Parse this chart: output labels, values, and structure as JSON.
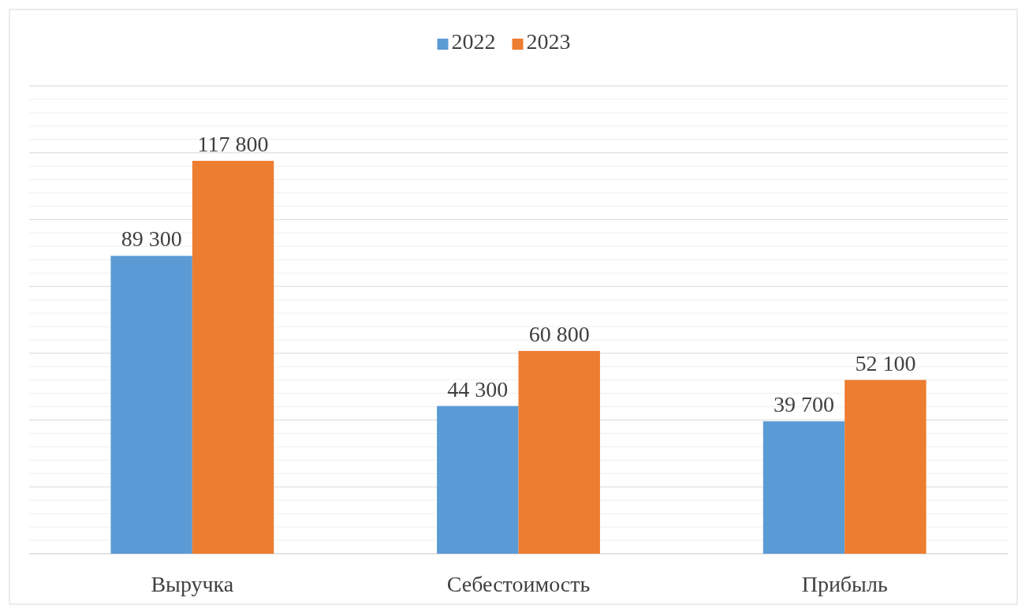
{
  "chart_data": {
    "type": "bar",
    "categories": [
      "Выручка",
      "Себестоимость",
      "Прибыль"
    ],
    "series": [
      {
        "name": "2022",
        "color": "#5b9bd5",
        "values": [
          89300,
          44300,
          39700
        ],
        "value_labels": [
          "89 300",
          "44 300",
          "39 700"
        ]
      },
      {
        "name": "2023",
        "color": "#ed7d31",
        "values": [
          117800,
          60800,
          52100
        ],
        "value_labels": [
          "117 800",
          "60 800",
          "52 100"
        ]
      }
    ],
    "tick_labels": "x",
    "grid": "y",
    "legend": "top"
  }
}
